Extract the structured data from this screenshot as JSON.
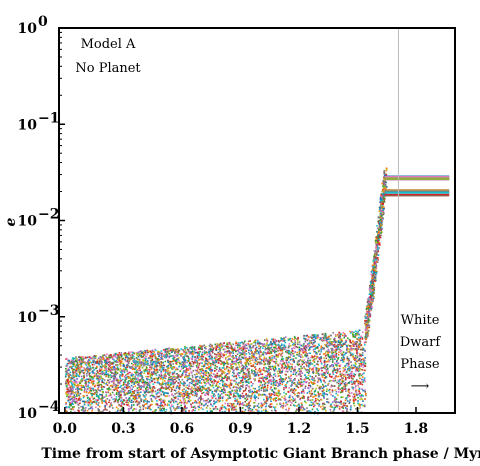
{
  "chart_data": {
    "type": "scatter",
    "title": "",
    "xlabel": "Time from start of Asymptotic Giant Branch phase / Myr",
    "ylabel": "e",
    "xlim": [
      -0.03,
      2.0
    ],
    "ylim": [
      0.0001,
      1.0
    ],
    "yscale": "log",
    "xticks": [
      0.0,
      0.3,
      0.6,
      0.9,
      1.2,
      1.5,
      1.8
    ],
    "xtick_labels": [
      "0.0",
      "0.3",
      "0.6",
      "0.9",
      "1.2",
      "1.5",
      "1.8"
    ],
    "yticks": [
      0.0001,
      0.001,
      0.01,
      0.1,
      1.0
    ],
    "ytick_labels": [
      {
        "base": "10",
        "exp": "−4"
      },
      {
        "base": "10",
        "exp": "−3"
      },
      {
        "base": "10",
        "exp": "−2"
      },
      {
        "base": "10",
        "exp": "−1"
      },
      {
        "base": "10",
        "exp": "0"
      }
    ],
    "grid": false,
    "vline_x": 1.71,
    "annotations": {
      "model_line1": "Model A",
      "model_line2": "No Planet",
      "phase_line1": "White",
      "phase_line2": "Dwarf",
      "phase_line3": "Phase",
      "phase_arrow": "⟶"
    },
    "description_of_series": {
      "agb_band_upper_e_start": 0.00038,
      "agb_band_upper_e_end": 0.00075,
      "agb_band_lower_e": 0.0001,
      "rise_start_x": 1.54,
      "rise_end_x": 1.64,
      "wd_x_start": 1.64,
      "wd_x_end": 1.97,
      "wd_e_upper_group": [
        0.026,
        0.029
      ],
      "wd_e_lower_group": [
        0.018,
        0.021
      ]
    },
    "colors": [
      "#1f77b4",
      "#ff7f0e",
      "#2ca02c",
      "#d62728",
      "#9467bd",
      "#8c564b",
      "#e377c2",
      "#7f7f7f",
      "#bcbd22",
      "#17becf"
    ]
  }
}
